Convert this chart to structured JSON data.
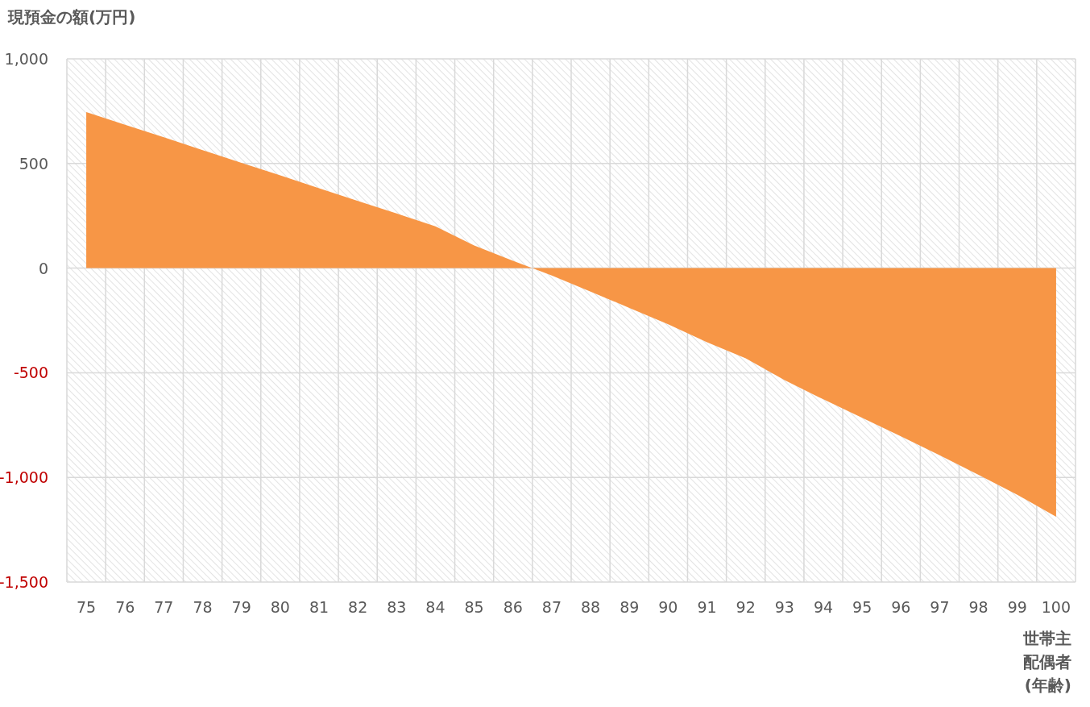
{
  "chart_data": {
    "type": "area",
    "ylabel": "現預金の額(万円)",
    "xlabel": "世帯主配偶者(年齢)",
    "categories": [
      "75",
      "76",
      "77",
      "78",
      "79",
      "80",
      "81",
      "82",
      "83",
      "84",
      "85",
      "86",
      "87",
      "88",
      "89",
      "90",
      "91",
      "92",
      "93",
      "94",
      "95",
      "96",
      "97",
      "98",
      "99",
      "100"
    ],
    "values": [
      746,
      685,
      625,
      564,
      503,
      443,
      382,
      321,
      261,
      200,
      108,
      35,
      -35,
      -112,
      -190,
      -268,
      -354,
      -431,
      -535,
      -627,
      -715,
      -804,
      -894,
      -988,
      -1083,
      -1188
    ],
    "color": "#f79646",
    "ylim": [
      -1500,
      1000
    ],
    "yticks": [
      {
        "value": -1500,
        "label": "-1,500"
      },
      {
        "value": -1000,
        "label": "-1,000"
      },
      -500,
      0,
      500,
      {
        "value": 1000,
        "label": "1,000"
      }
    ],
    "grid": true
  }
}
